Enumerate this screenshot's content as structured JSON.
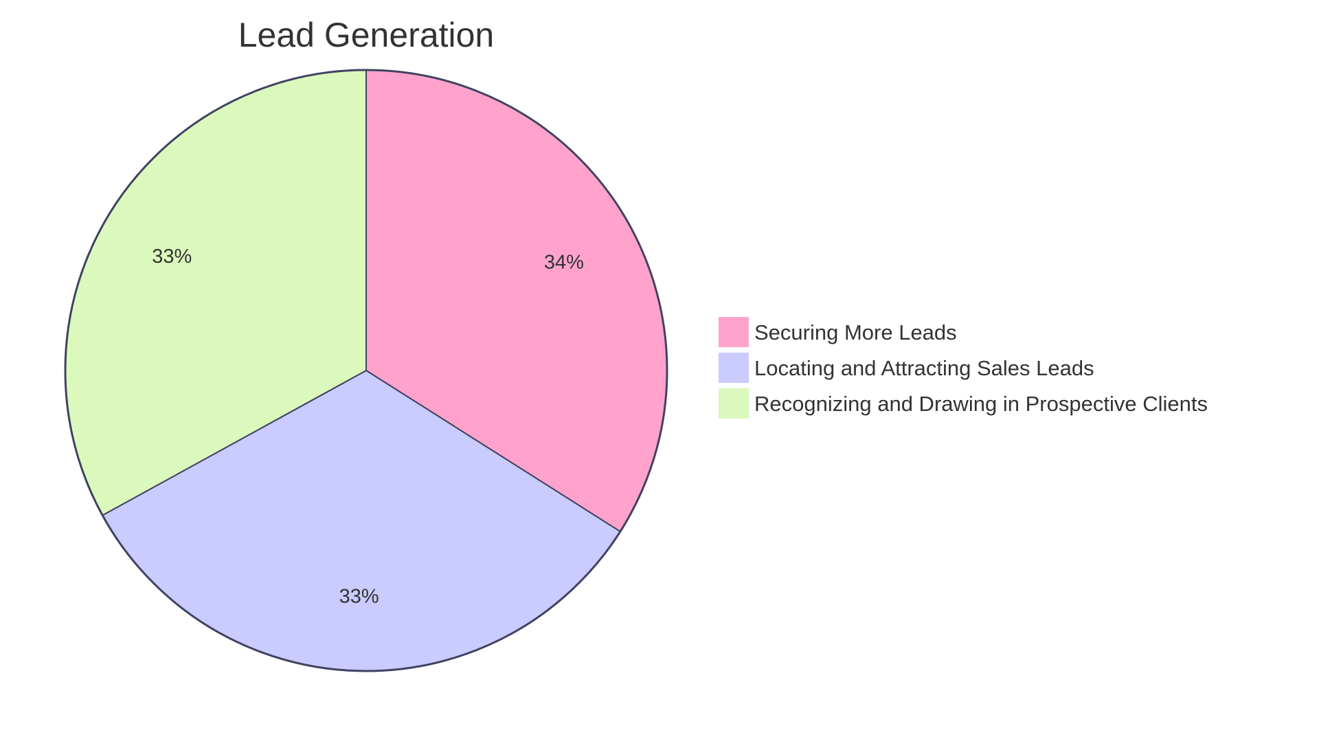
{
  "chart_data": {
    "type": "pie",
    "title": "Lead Generation",
    "categories": [
      "Securing More Leads",
      "Locating and Attracting Sales Leads",
      "Recognizing and Drawing in Prospective Clients"
    ],
    "values": [
      34,
      33,
      33
    ],
    "labels": [
      "34%",
      "33%",
      "33%"
    ],
    "colors": [
      "#FFA3CC",
      "#CACBFE",
      "#DBF9BC"
    ],
    "stroke": "#3F4361",
    "legend_position": "right",
    "start_angle_deg": 0,
    "direction": "clockwise"
  }
}
